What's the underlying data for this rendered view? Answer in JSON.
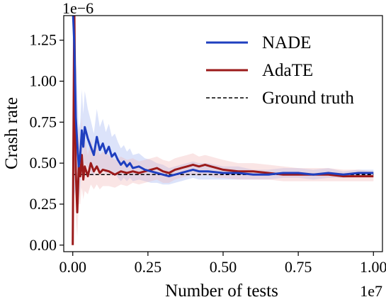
{
  "chart_data": {
    "type": "line",
    "title": "",
    "xlabel": "Number of tests",
    "ylabel": "Crash rate",
    "x_offset_label": "1e7",
    "y_offset_label": "1e−6",
    "xlim": [
      -0.03,
      1.03
    ],
    "ylim": [
      -0.04,
      1.4
    ],
    "x_ticks": [
      0.0,
      0.25,
      0.5,
      0.75,
      1.0
    ],
    "x_tick_labels": [
      "0.00",
      "0.25",
      "0.50",
      "0.75",
      "1.00"
    ],
    "y_ticks": [
      0.0,
      0.25,
      0.5,
      0.75,
      1.0,
      1.25
    ],
    "y_tick_labels": [
      "0.00",
      "0.25",
      "0.50",
      "0.75",
      "1.00",
      "1.25"
    ],
    "grid": false,
    "legend_position": "top-right",
    "series": [
      {
        "name": "NADE",
        "color": "#1f3fbf",
        "band_color": "#9aaef0",
        "x": [
          0.0,
          0.005,
          0.01,
          0.015,
          0.02,
          0.025,
          0.03,
          0.035,
          0.04,
          0.05,
          0.06,
          0.07,
          0.08,
          0.09,
          0.1,
          0.11,
          0.12,
          0.13,
          0.14,
          0.15,
          0.16,
          0.17,
          0.18,
          0.19,
          0.2,
          0.22,
          0.24,
          0.26,
          0.28,
          0.3,
          0.32,
          0.34,
          0.36,
          0.38,
          0.4,
          0.42,
          0.45,
          0.5,
          0.55,
          0.6,
          0.65,
          0.7,
          0.75,
          0.8,
          0.85,
          0.9,
          0.95,
          1.0
        ],
        "y": [
          1.45,
          1.23,
          0.78,
          0.62,
          0.48,
          0.55,
          0.7,
          0.6,
          0.72,
          0.65,
          0.6,
          0.55,
          0.66,
          0.58,
          0.62,
          0.56,
          0.6,
          0.54,
          0.56,
          0.52,
          0.49,
          0.51,
          0.48,
          0.5,
          0.47,
          0.48,
          0.46,
          0.45,
          0.44,
          0.43,
          0.42,
          0.43,
          0.44,
          0.45,
          0.46,
          0.45,
          0.45,
          0.44,
          0.44,
          0.43,
          0.43,
          0.44,
          0.44,
          0.43,
          0.44,
          0.43,
          0.44,
          0.44
        ],
        "band_lower": [
          0.0,
          0.3,
          0.35,
          0.3,
          0.28,
          0.35,
          0.45,
          0.42,
          0.5,
          0.47,
          0.44,
          0.42,
          0.49,
          0.44,
          0.47,
          0.43,
          0.46,
          0.42,
          0.44,
          0.41,
          0.39,
          0.41,
          0.39,
          0.41,
          0.39,
          0.4,
          0.39,
          0.38,
          0.38,
          0.37,
          0.37,
          0.38,
          0.39,
          0.4,
          0.41,
          0.4,
          0.4,
          0.4,
          0.4,
          0.4,
          0.4,
          0.41,
          0.41,
          0.4,
          0.41,
          0.41,
          0.42,
          0.42
        ],
        "band_upper": [
          1.5,
          1.5,
          1.2,
          0.95,
          0.7,
          0.75,
          0.95,
          0.8,
          0.94,
          0.83,
          0.76,
          0.68,
          0.83,
          0.72,
          0.77,
          0.69,
          0.74,
          0.66,
          0.68,
          0.63,
          0.59,
          0.61,
          0.57,
          0.59,
          0.55,
          0.56,
          0.53,
          0.52,
          0.5,
          0.49,
          0.47,
          0.48,
          0.49,
          0.5,
          0.51,
          0.5,
          0.5,
          0.48,
          0.48,
          0.46,
          0.46,
          0.47,
          0.47,
          0.46,
          0.47,
          0.45,
          0.46,
          0.46
        ]
      },
      {
        "name": "AdaTE",
        "color": "#9b1a1a",
        "band_color": "#f2b5b5",
        "x": [
          0.0,
          0.005,
          0.01,
          0.015,
          0.02,
          0.025,
          0.03,
          0.035,
          0.04,
          0.05,
          0.06,
          0.07,
          0.08,
          0.09,
          0.1,
          0.12,
          0.14,
          0.16,
          0.18,
          0.2,
          0.22,
          0.24,
          0.26,
          0.28,
          0.3,
          0.32,
          0.34,
          0.36,
          0.38,
          0.4,
          0.42,
          0.44,
          0.46,
          0.48,
          0.5,
          0.55,
          0.6,
          0.65,
          0.7,
          0.75,
          0.8,
          0.85,
          0.9,
          0.95,
          1.0
        ],
        "y": [
          0.0,
          1.45,
          0.45,
          0.2,
          0.48,
          0.42,
          0.55,
          0.4,
          0.48,
          0.42,
          0.5,
          0.45,
          0.48,
          0.44,
          0.46,
          0.45,
          0.43,
          0.45,
          0.44,
          0.45,
          0.44,
          0.45,
          0.46,
          0.47,
          0.45,
          0.44,
          0.46,
          0.47,
          0.48,
          0.49,
          0.48,
          0.49,
          0.48,
          0.47,
          0.46,
          0.45,
          0.45,
          0.44,
          0.43,
          0.43,
          0.43,
          0.43,
          0.42,
          0.42,
          0.42
        ],
        "band_lower": [
          0.0,
          0.5,
          0.15,
          0.05,
          0.25,
          0.25,
          0.35,
          0.28,
          0.33,
          0.31,
          0.37,
          0.34,
          0.37,
          0.34,
          0.36,
          0.36,
          0.35,
          0.37,
          0.36,
          0.38,
          0.37,
          0.38,
          0.39,
          0.4,
          0.38,
          0.38,
          0.4,
          0.41,
          0.42,
          0.43,
          0.42,
          0.43,
          0.42,
          0.41,
          0.41,
          0.4,
          0.4,
          0.4,
          0.39,
          0.39,
          0.39,
          0.39,
          0.39,
          0.39,
          0.39
        ],
        "band_upper": [
          0.3,
          1.5,
          0.8,
          0.45,
          0.75,
          0.62,
          0.78,
          0.55,
          0.65,
          0.55,
          0.65,
          0.57,
          0.6,
          0.55,
          0.57,
          0.55,
          0.52,
          0.54,
          0.52,
          0.53,
          0.51,
          0.52,
          0.53,
          0.54,
          0.52,
          0.51,
          0.53,
          0.54,
          0.55,
          0.56,
          0.54,
          0.55,
          0.54,
          0.53,
          0.52,
          0.5,
          0.5,
          0.49,
          0.48,
          0.47,
          0.47,
          0.47,
          0.46,
          0.46,
          0.45
        ]
      },
      {
        "name": "Ground truth",
        "color": "#000000",
        "dashed": true,
        "x": [
          0.0,
          1.0
        ],
        "y": [
          0.43,
          0.43
        ]
      }
    ]
  }
}
